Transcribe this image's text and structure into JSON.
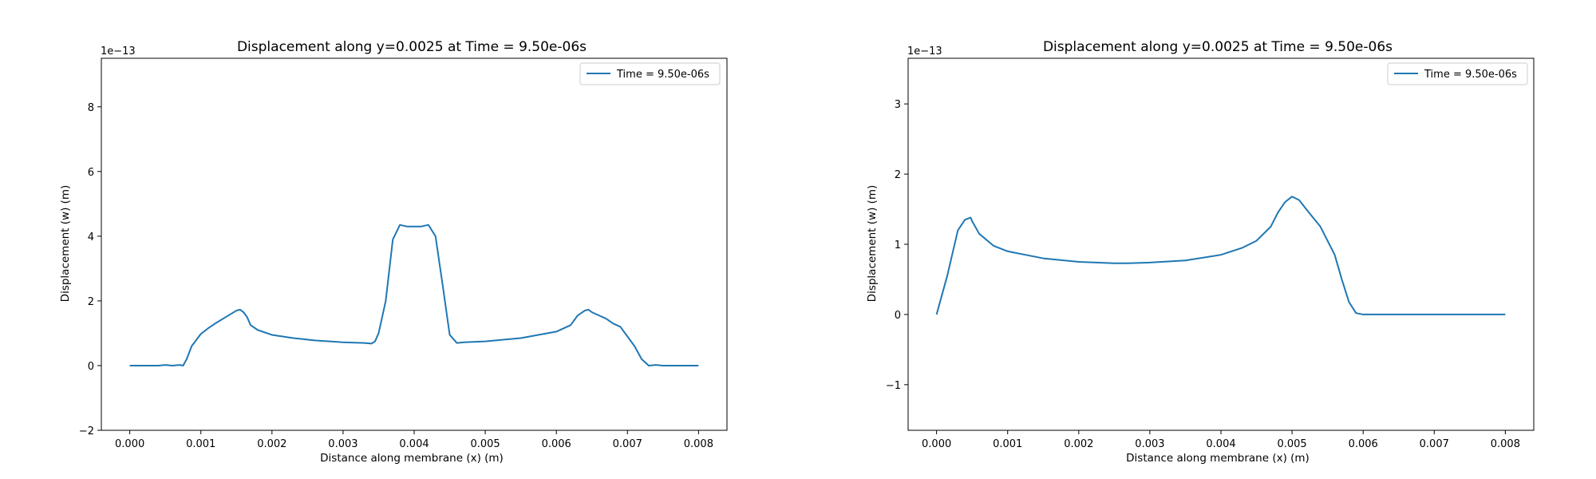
{
  "line_color": "#1f77b4",
  "chart_data": [
    {
      "type": "line",
      "title": "Displacement along y=0.0025 at Time = 9.50e-06s",
      "xlabel": "Distance along membrane (x) (m)",
      "ylabel": "Displacement (w) (m)",
      "y_offset_label": "1e−13",
      "xlim": [
        -0.0004,
        0.0084
      ],
      "ylim": [
        -2.0,
        9.5
      ],
      "x_ticks": [
        0.0,
        0.001,
        0.002,
        0.003,
        0.004,
        0.005,
        0.006,
        0.007,
        0.008
      ],
      "x_tick_labels": [
        "0.000",
        "0.001",
        "0.002",
        "0.003",
        "0.004",
        "0.005",
        "0.006",
        "0.007",
        "0.008"
      ],
      "y_ticks": [
        -2,
        0,
        2,
        4,
        6,
        8
      ],
      "y_tick_labels": [
        "−2",
        "0",
        "2",
        "4",
        "6",
        "8"
      ],
      "grid": false,
      "legend_position": "top-right",
      "series": [
        {
          "name": "Time = 9.50e-06s",
          "x": [
            0.0,
            0.0002,
            0.0004,
            0.0005,
            0.0006,
            0.0007,
            0.00075,
            0.0008,
            0.00087,
            0.001,
            0.0011,
            0.0012,
            0.00135,
            0.0015,
            0.00155,
            0.0016,
            0.00165,
            0.0017,
            0.0018,
            0.002,
            0.0023,
            0.0026,
            0.003,
            0.0033,
            0.0034,
            0.00345,
            0.0035,
            0.0036,
            0.0037,
            0.0038,
            0.0039,
            0.004,
            0.0041,
            0.0042,
            0.0043,
            0.0044,
            0.0045,
            0.0046,
            0.0047,
            0.005,
            0.0055,
            0.006,
            0.0062,
            0.0063,
            0.0064,
            0.00645,
            0.0065,
            0.0066,
            0.0067,
            0.0068,
            0.0069,
            0.0071,
            0.0072,
            0.0073,
            0.0074,
            0.0075,
            0.0076,
            0.008
          ],
          "y": [
            0.0,
            0.0,
            0.0,
            0.02,
            0.0,
            0.02,
            0.0,
            0.2,
            0.6,
            0.98,
            1.15,
            1.3,
            1.5,
            1.7,
            1.73,
            1.65,
            1.5,
            1.25,
            1.1,
            0.95,
            0.85,
            0.78,
            0.72,
            0.7,
            0.68,
            0.75,
            1.0,
            2.0,
            3.9,
            4.35,
            4.3,
            4.3,
            4.3,
            4.35,
            4.0,
            2.5,
            0.95,
            0.7,
            0.72,
            0.75,
            0.85,
            1.05,
            1.25,
            1.55,
            1.7,
            1.73,
            1.65,
            1.55,
            1.45,
            1.3,
            1.2,
            0.6,
            0.2,
            0.0,
            0.02,
            0.0,
            0.0,
            0.0
          ]
        }
      ]
    },
    {
      "type": "line",
      "title": "Displacement along y=0.0025 at Time = 9.50e-06s",
      "xlabel": "Distance along membrane (x) (m)",
      "ylabel": "Displacement (w) (m)",
      "y_offset_label": "1e−13",
      "xlim": [
        -0.0004,
        0.0084
      ],
      "ylim": [
        -1.65,
        3.65
      ],
      "x_ticks": [
        0.0,
        0.001,
        0.002,
        0.003,
        0.004,
        0.005,
        0.006,
        0.007,
        0.008
      ],
      "x_tick_labels": [
        "0.000",
        "0.001",
        "0.002",
        "0.003",
        "0.004",
        "0.005",
        "0.006",
        "0.007",
        "0.008"
      ],
      "y_ticks": [
        -1,
        0,
        1,
        2,
        3
      ],
      "y_tick_labels": [
        "−1",
        "0",
        "1",
        "2",
        "3"
      ],
      "grid": false,
      "legend_position": "top-right",
      "series": [
        {
          "name": "Time = 9.50e-06s",
          "x": [
            0.0,
            0.00015,
            0.0003,
            0.0004,
            0.00048,
            0.0005,
            0.0006,
            0.0008,
            0.001,
            0.0015,
            0.002,
            0.0025,
            0.0027,
            0.003,
            0.0035,
            0.004,
            0.0043,
            0.0045,
            0.0047,
            0.0048,
            0.0049,
            0.005,
            0.0051,
            0.0052,
            0.0054,
            0.0056,
            0.0057,
            0.0058,
            0.0059,
            0.006,
            0.007,
            0.008
          ],
          "y": [
            0.0,
            0.55,
            1.2,
            1.35,
            1.38,
            1.33,
            1.15,
            0.98,
            0.9,
            0.8,
            0.75,
            0.73,
            0.73,
            0.74,
            0.77,
            0.85,
            0.95,
            1.05,
            1.25,
            1.45,
            1.6,
            1.68,
            1.63,
            1.5,
            1.25,
            0.85,
            0.5,
            0.18,
            0.02,
            0.0,
            0.0,
            0.0
          ]
        }
      ]
    }
  ]
}
